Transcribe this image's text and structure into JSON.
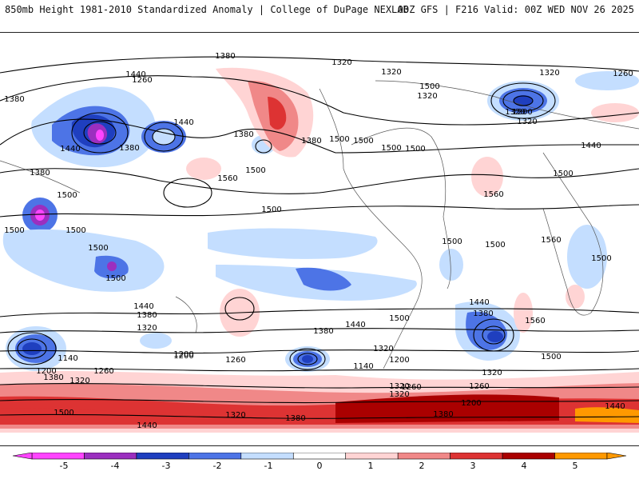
{
  "header": {
    "left_title": "850mb Height 1981-2010 Standardized Anomaly | College of DuPage NEXLAB",
    "right_title": "00Z GFS | F216 Valid: 00Z WED NOV 26 2025"
  },
  "contour_labels": [
    "1380",
    "1320",
    "1440",
    "1260",
    "1320",
    "1380",
    "1500",
    "1320",
    "1320",
    "1260",
    "1320",
    "1380",
    "1380",
    "1440",
    "1380",
    "1500",
    "1500",
    "1500",
    "1440",
    "1380",
    "1200",
    "1320",
    "1560",
    "1500",
    "1440",
    "1560",
    "1500",
    "1500",
    "1500",
    "1500",
    "1500",
    "1500",
    "1500",
    "1500",
    "1500",
    "1560",
    "1500",
    "1500",
    "1440",
    "1380",
    "1320",
    "1140",
    "1200",
    "1260",
    "1440",
    "1380",
    "1320",
    "1140",
    "1200",
    "1200",
    "1260",
    "1320",
    "1380",
    "1320",
    "1500",
    "1440",
    "1380",
    "1560",
    "1200",
    "1260",
    "1320",
    "1440",
    "1380",
    "1320",
    "1260",
    "1200",
    "1500",
    "1320",
    "1380",
    "1440",
    "1500"
  ],
  "colorbar": {
    "ticks": [
      "-5",
      "-4",
      "-3",
      "-2",
      "-1",
      "0",
      "1",
      "2",
      "3",
      "4",
      "5"
    ],
    "colors": {
      "neg5": "#ff44ff",
      "neg4": "#9b2fbf",
      "neg3": "#1f3fbf",
      "neg2": "#4d74e6",
      "neg1": "#c4deff",
      "pos1": "#ffd4d4",
      "pos2": "#f08888",
      "pos3": "#dd3333",
      "pos4": "#aa0000",
      "pos5": "#ff9900"
    }
  }
}
